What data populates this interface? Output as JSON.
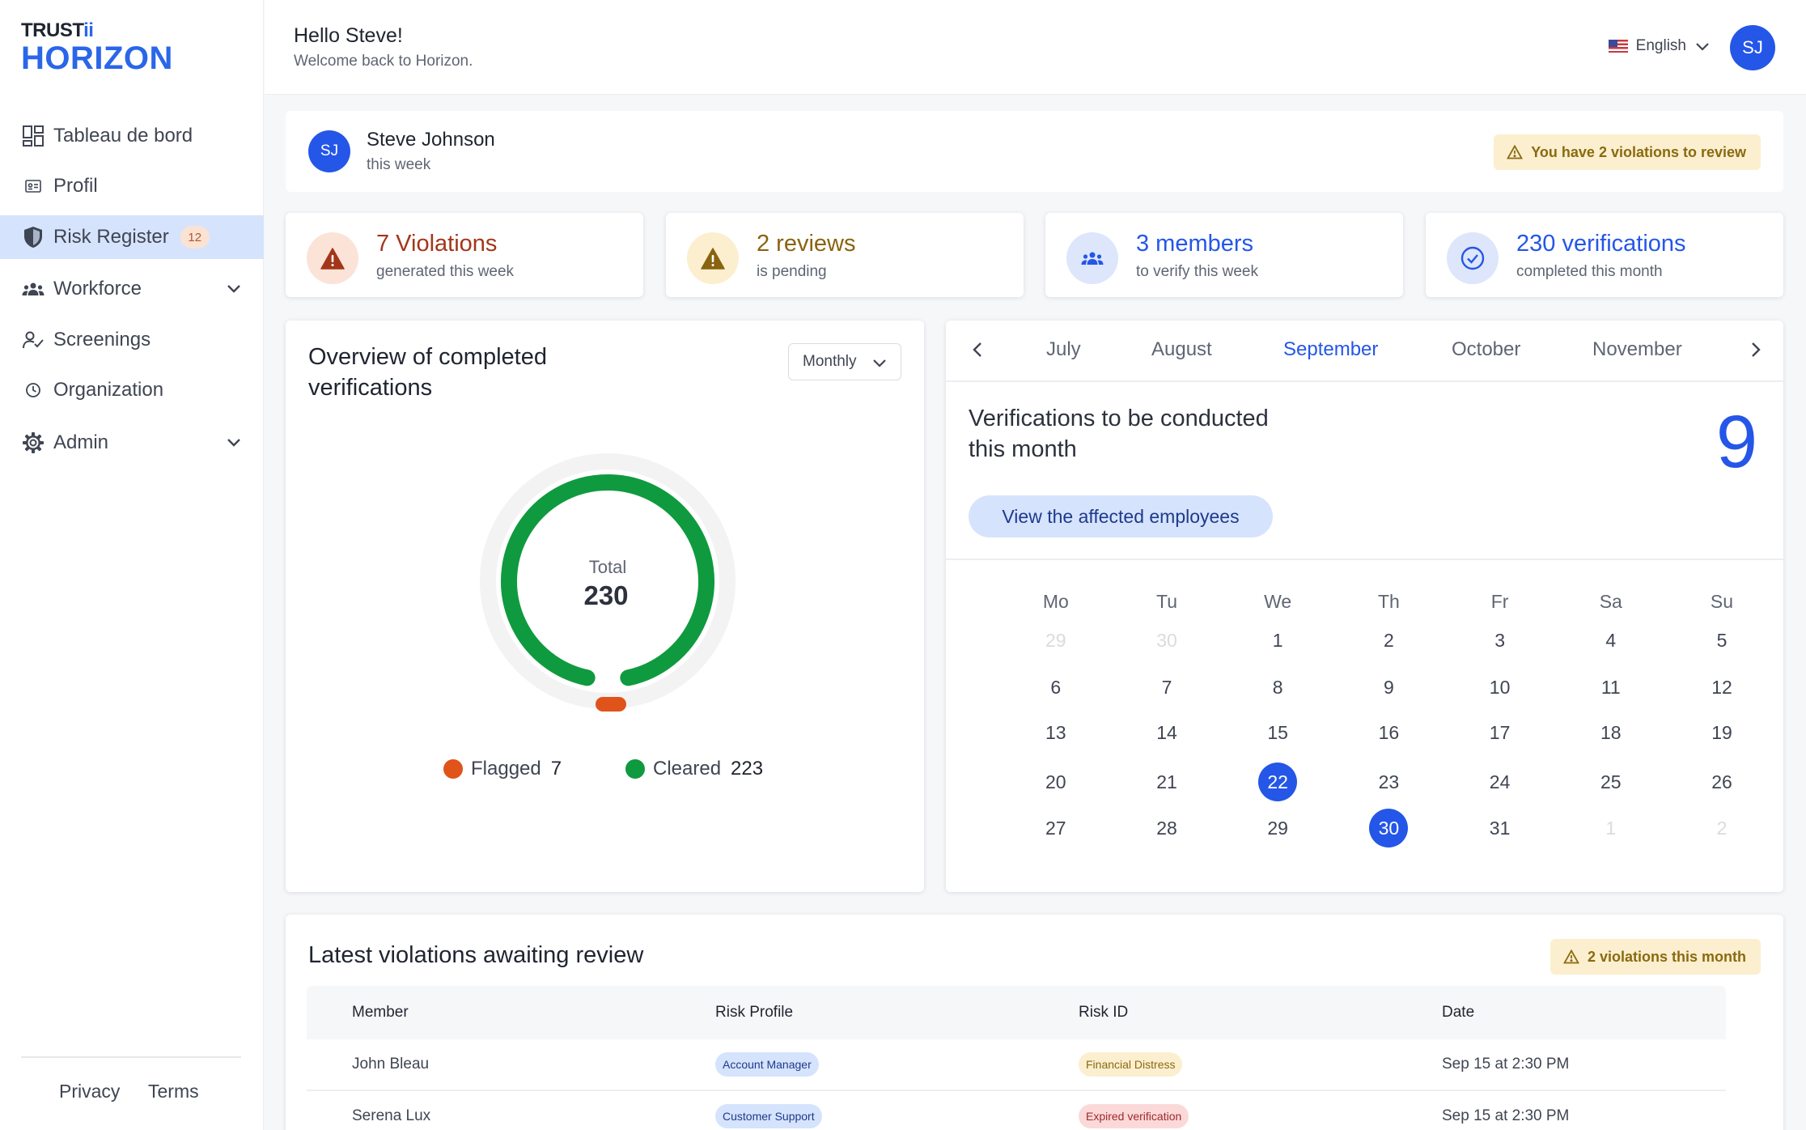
{
  "brand": {
    "top_a": "TRUST",
    "top_b": "ii",
    "main": "HORIZON"
  },
  "sidebar": {
    "items": [
      {
        "label": "Tableau de bord",
        "icon": "dashboard-icon"
      },
      {
        "label": "Profil",
        "icon": "id-card-icon"
      },
      {
        "label": "Risk Register",
        "icon": "shield-icon",
        "badge": "12",
        "active": true
      },
      {
        "label": "Workforce",
        "icon": "team-icon",
        "expandable": true
      },
      {
        "label": "Screenings",
        "icon": "user-check-icon"
      },
      {
        "label": "Organization",
        "icon": "clock-icon"
      },
      {
        "label": "Admin",
        "icon": "gear-icon",
        "expandable": true
      }
    ],
    "footer": {
      "privacy": "Privacy",
      "terms": "Terms"
    }
  },
  "header": {
    "greeting": "Hello Steve!",
    "welcome": "Welcome back to Horizon.",
    "language": "English",
    "avatar_initials": "SJ"
  },
  "user_strip": {
    "initials": "SJ",
    "name": "Steve Johnson",
    "period": "this week",
    "alert": "You have 2 violations to review"
  },
  "stats": [
    {
      "title": "7 Violations",
      "sub": "generated this week",
      "icon": "alert-triangle-icon",
      "color": "#a3361a",
      "bg": "#fbe3d8"
    },
    {
      "title": "2 reviews",
      "sub": "is pending",
      "icon": "alert-triangle-icon",
      "color": "#8a6310",
      "bg": "#fbefcf"
    },
    {
      "title": "3 members",
      "sub": "to verify this week",
      "icon": "team-icon",
      "color": "#2456e8",
      "bg": "#dde6fb"
    },
    {
      "title": "230 verifications",
      "sub": "completed this month",
      "icon": "check-circle-icon",
      "color": "#2456e8",
      "bg": "#dde6fb"
    }
  ],
  "overview": {
    "title": "Overview of completed verifications",
    "period": "Monthly",
    "total_label": "Total",
    "total_value": "230",
    "flagged_label": "Flagged",
    "flagged_value": "7",
    "cleared_label": "Cleared",
    "cleared_value": "223",
    "colors": {
      "flagged": "#e0531b",
      "cleared": "#0f9a3f"
    }
  },
  "calendar": {
    "months": [
      "July",
      "August",
      "September",
      "October",
      "November"
    ],
    "active_month": "September",
    "title": "Verifications to be conducted this month",
    "count": "9",
    "button": "View the affected employees",
    "weekdays": [
      "Mo",
      "Tu",
      "We",
      "Th",
      "Fr",
      "Sa",
      "Su"
    ],
    "weeks": [
      [
        "29",
        "30",
        "1",
        "2",
        "3",
        "4",
        "5"
      ],
      [
        "6",
        "7",
        "8",
        "9",
        "10",
        "11",
        "12"
      ],
      [
        "13",
        "14",
        "15",
        "16",
        "17",
        "18",
        "19"
      ],
      [
        "20",
        "21",
        "22",
        "23",
        "24",
        "25",
        "26"
      ],
      [
        "27",
        "28",
        "29",
        "30",
        "31",
        "1",
        "2"
      ]
    ],
    "muted_days": [
      "0-0",
      "0-1",
      "4-5",
      "4-6"
    ],
    "selected_days": [
      "3-2",
      "4-3"
    ]
  },
  "violations": {
    "title": "Latest violations awaiting review",
    "alert": "2 violations this month",
    "columns": [
      "Member",
      "Risk Profile",
      "Risk ID",
      "Date"
    ],
    "rows": [
      {
        "member": "John Bleau",
        "profile": "Account Manager",
        "risk": "Financial Distress",
        "risk_color": "yellow",
        "date": "Sep 15 at 2:30 PM"
      },
      {
        "member": "Serena Lux",
        "profile": "Customer Support",
        "risk": "Expired verification",
        "risk_color": "red",
        "date": "Sep 15 at 2:30 PM"
      }
    ]
  }
}
